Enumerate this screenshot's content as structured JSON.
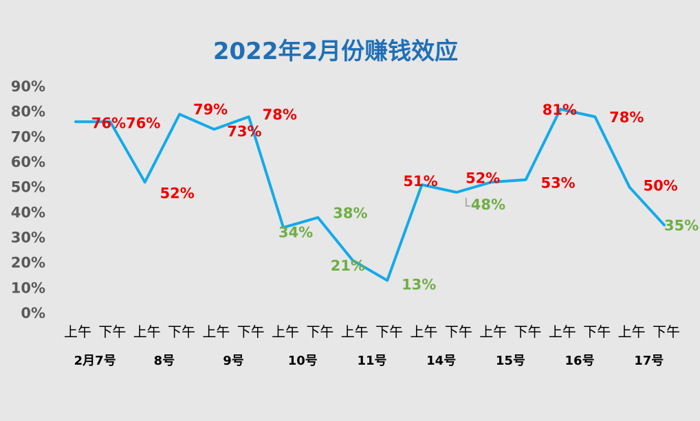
{
  "chart_data": {
    "type": "line",
    "title": "2022年2月份赚钱效应",
    "categories": [
      "上午",
      "下午",
      "上午",
      "下午",
      "上午",
      "下午",
      "上午",
      "下午",
      "上午",
      "下午",
      "上午",
      "下午",
      "上午",
      "下午",
      "上午",
      "下午",
      "上午",
      "下午"
    ],
    "groups": [
      "2月7号",
      "8号",
      "9号",
      "10号",
      "11号",
      "14号",
      "15号",
      "16号",
      "17号"
    ],
    "series": [
      {
        "values": [
          76,
          76,
          52,
          79,
          73,
          78,
          34,
          38,
          21,
          13,
          51,
          48,
          52,
          53,
          81,
          78,
          50,
          35
        ],
        "labels": [
          "76%",
          "76%",
          "52%",
          "79%",
          "73%",
          "78%",
          "34%",
          "38%",
          "21%",
          "13%",
          "51%",
          "48%",
          "52%",
          "53%",
          "81%",
          "78%",
          "50%",
          "35%"
        ]
      }
    ],
    "yticks": [
      "0%",
      "10%",
      "20%",
      "30%",
      "40%",
      "50%",
      "60%",
      "70%",
      "80%",
      "90%"
    ],
    "ylim": [
      0,
      90
    ],
    "grid": false,
    "legend": "none",
    "colors": {
      "line": "#13aaea",
      "title": "#1f6fb5",
      "label_high": "#ee0000",
      "label_low": "#70ad47",
      "background": "#e7e7e7"
    }
  }
}
